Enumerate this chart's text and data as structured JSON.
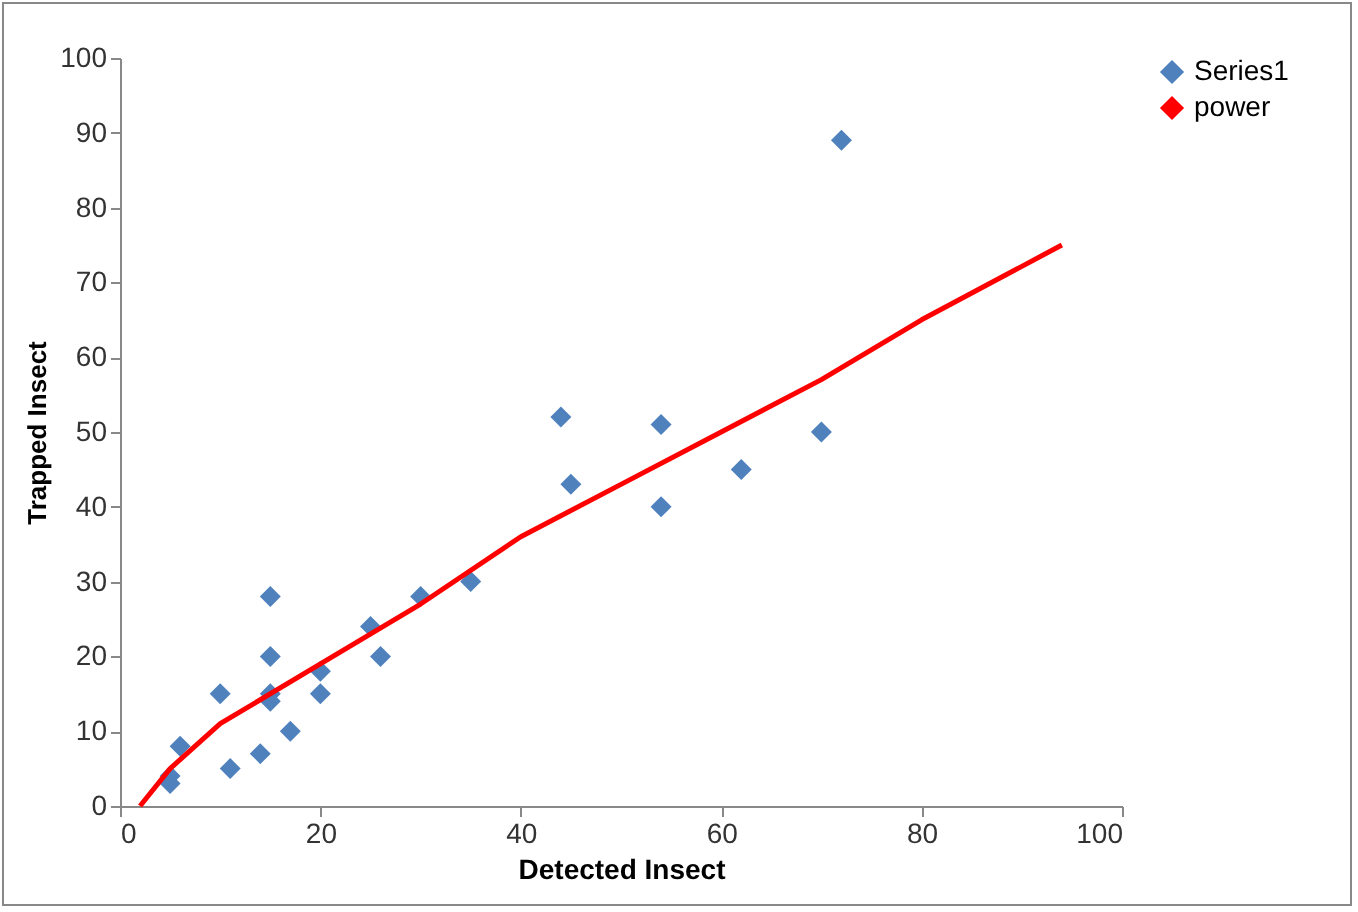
{
  "chart_data": {
    "type": "scatter",
    "xlabel": "Detected Insect",
    "ylabel": "Trapped Insect",
    "xlim": [
      0,
      100
    ],
    "xticks": [
      0,
      20,
      40,
      60,
      80,
      100
    ],
    "ylim": [
      0,
      100
    ],
    "yticks": [
      0,
      10,
      20,
      30,
      40,
      50,
      60,
      70,
      80,
      90,
      100
    ],
    "grid": false,
    "legend": "right",
    "marker": "diamond",
    "series": [
      {
        "name": "Series1",
        "color": "#4f81bd",
        "x": [
          5,
          5,
          6,
          10,
          11,
          14,
          15,
          15,
          15,
          15,
          17,
          20,
          20,
          25,
          26,
          30,
          35,
          44,
          45,
          54,
          54,
          62,
          70,
          72
        ],
        "values": [
          3,
          4,
          8,
          15,
          5,
          7,
          28,
          20,
          15,
          14,
          10,
          18,
          15,
          24,
          20,
          28,
          30,
          52,
          43,
          51,
          40,
          45,
          50,
          89
        ]
      },
      {
        "name": "power",
        "type": "line",
        "color": "#ff0000",
        "line_style": "solid",
        "marker": "none",
        "x": [
          2,
          5,
          10,
          20,
          30,
          40,
          50,
          60,
          70,
          80,
          94
        ],
        "values": [
          0,
          5,
          11,
          19,
          27,
          36,
          43,
          50,
          57,
          65,
          75
        ]
      }
    ]
  }
}
